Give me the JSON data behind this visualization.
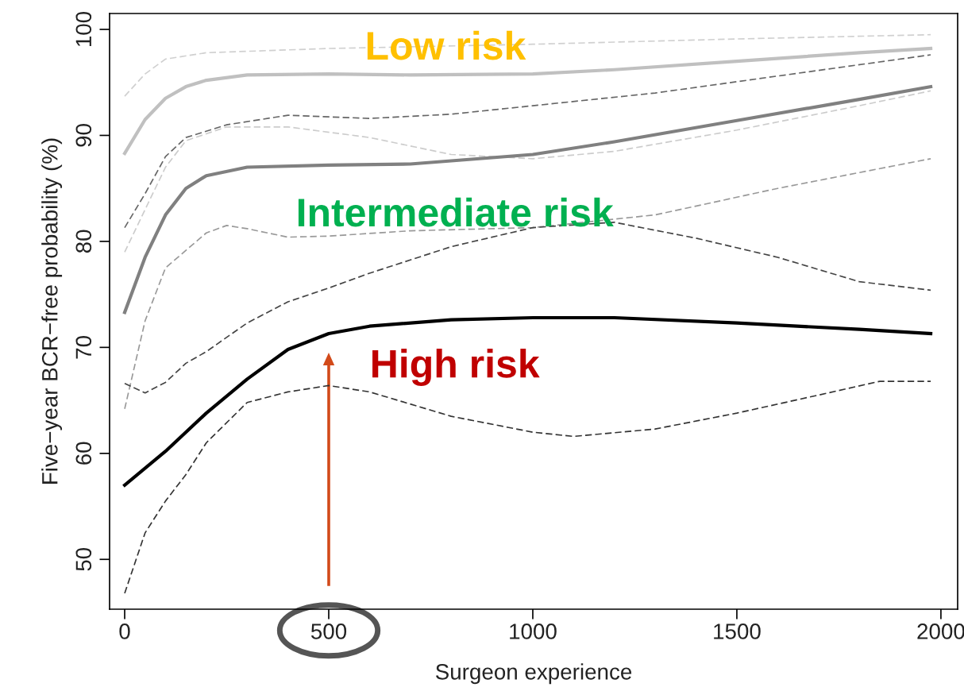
{
  "chart_data": {
    "type": "line",
    "xlabel": "Surgeon experience",
    "ylabel": "Five−year BCR−free probability (%)",
    "xlim": [
      -37,
      2041
    ],
    "ylim": [
      45.3,
      101.5
    ],
    "xticks": [
      0,
      500,
      1000,
      1500,
      2000
    ],
    "yticks": [
      50,
      60,
      70,
      80,
      90,
      100
    ],
    "grid": false,
    "legend": false,
    "marker": "none",
    "series": [
      {
        "color": "#d0d0d0",
        "line_style": "dashed",
        "x": [
          0,
          50,
          100,
          200,
          500,
          1000,
          1500,
          1975
        ],
        "values": [
          93.7,
          95.8,
          97.2,
          97.8,
          98.2,
          98.6,
          99.1,
          99.5
        ]
      },
      {
        "color": "#c0c0c0",
        "line_style": "solid",
        "x": [
          0,
          50,
          100,
          150,
          200,
          300,
          500,
          700,
          1000,
          1200,
          1500,
          1800,
          1975
        ],
        "values": [
          88.3,
          91.5,
          93.5,
          94.6,
          95.2,
          95.7,
          95.8,
          95.7,
          95.8,
          96.2,
          97.0,
          97.8,
          98.2
        ]
      },
      {
        "color": "#cccccc",
        "line_style": "dashed",
        "x": [
          0,
          50,
          100,
          150,
          250,
          400,
          600,
          800,
          1000,
          1200,
          1500,
          1800,
          1975
        ],
        "values": [
          79.0,
          83.0,
          87.0,
          89.5,
          90.8,
          90.8,
          89.8,
          88.2,
          87.8,
          88.5,
          90.5,
          92.8,
          94.2
        ]
      },
      {
        "color": "#666666",
        "line_style": "dashed",
        "x": [
          0,
          50,
          100,
          150,
          250,
          400,
          600,
          800,
          1000,
          1300,
          1600,
          1975
        ],
        "values": [
          81.3,
          84.5,
          88.0,
          89.8,
          91.0,
          91.9,
          91.6,
          92.0,
          92.8,
          94.0,
          95.6,
          97.6
        ]
      },
      {
        "color": "#808080",
        "line_style": "solid",
        "x": [
          0,
          50,
          100,
          150,
          200,
          300,
          500,
          700,
          1000,
          1200,
          1500,
          1800,
          1975
        ],
        "values": [
          73.3,
          78.5,
          82.5,
          85.0,
          86.2,
          87.0,
          87.2,
          87.3,
          88.2,
          89.4,
          91.4,
          93.4,
          94.6
        ]
      },
      {
        "color": "#999999",
        "line_style": "dashed",
        "x": [
          0,
          50,
          100,
          200,
          250,
          300,
          400,
          500,
          700,
          1000,
          1300,
          1600,
          1975
        ],
        "values": [
          64.2,
          72.5,
          77.5,
          80.8,
          81.5,
          81.2,
          80.4,
          80.5,
          81.0,
          81.3,
          82.5,
          85.0,
          87.8
        ]
      },
      {
        "color": "#444444",
        "line_style": "dashed",
        "x": [
          0,
          50,
          100,
          150,
          200,
          300,
          400,
          500,
          600,
          800,
          1000,
          1200,
          1400,
          1600,
          1800,
          1975
        ],
        "values": [
          66.6,
          65.7,
          66.7,
          68.5,
          69.6,
          72.3,
          74.3,
          75.6,
          77.0,
          79.5,
          81.3,
          81.8,
          80.3,
          78.5,
          76.2,
          75.4
        ]
      },
      {
        "color": "#000000",
        "line_style": "solid",
        "x": [
          0,
          100,
          200,
          300,
          400,
          500,
          600,
          800,
          1000,
          1200,
          1500,
          1800,
          1975
        ],
        "values": [
          57.0,
          60.2,
          63.8,
          67.0,
          69.8,
          71.3,
          72.0,
          72.6,
          72.8,
          72.8,
          72.3,
          71.7,
          71.3
        ]
      },
      {
        "color": "#333333",
        "line_style": "dashed",
        "x": [
          0,
          50,
          100,
          150,
          200,
          300,
          400,
          500,
          600,
          800,
          1000,
          1100,
          1300,
          1500,
          1700,
          1850,
          1975
        ],
        "values": [
          46.8,
          52.5,
          55.5,
          58.0,
          61.0,
          64.8,
          65.8,
          66.4,
          65.8,
          63.5,
          62.0,
          61.6,
          62.3,
          63.8,
          65.5,
          66.8,
          66.8
        ]
      }
    ],
    "annotations": [
      "Low risk",
      "Intermediate risk",
      "High risk"
    ]
  }
}
